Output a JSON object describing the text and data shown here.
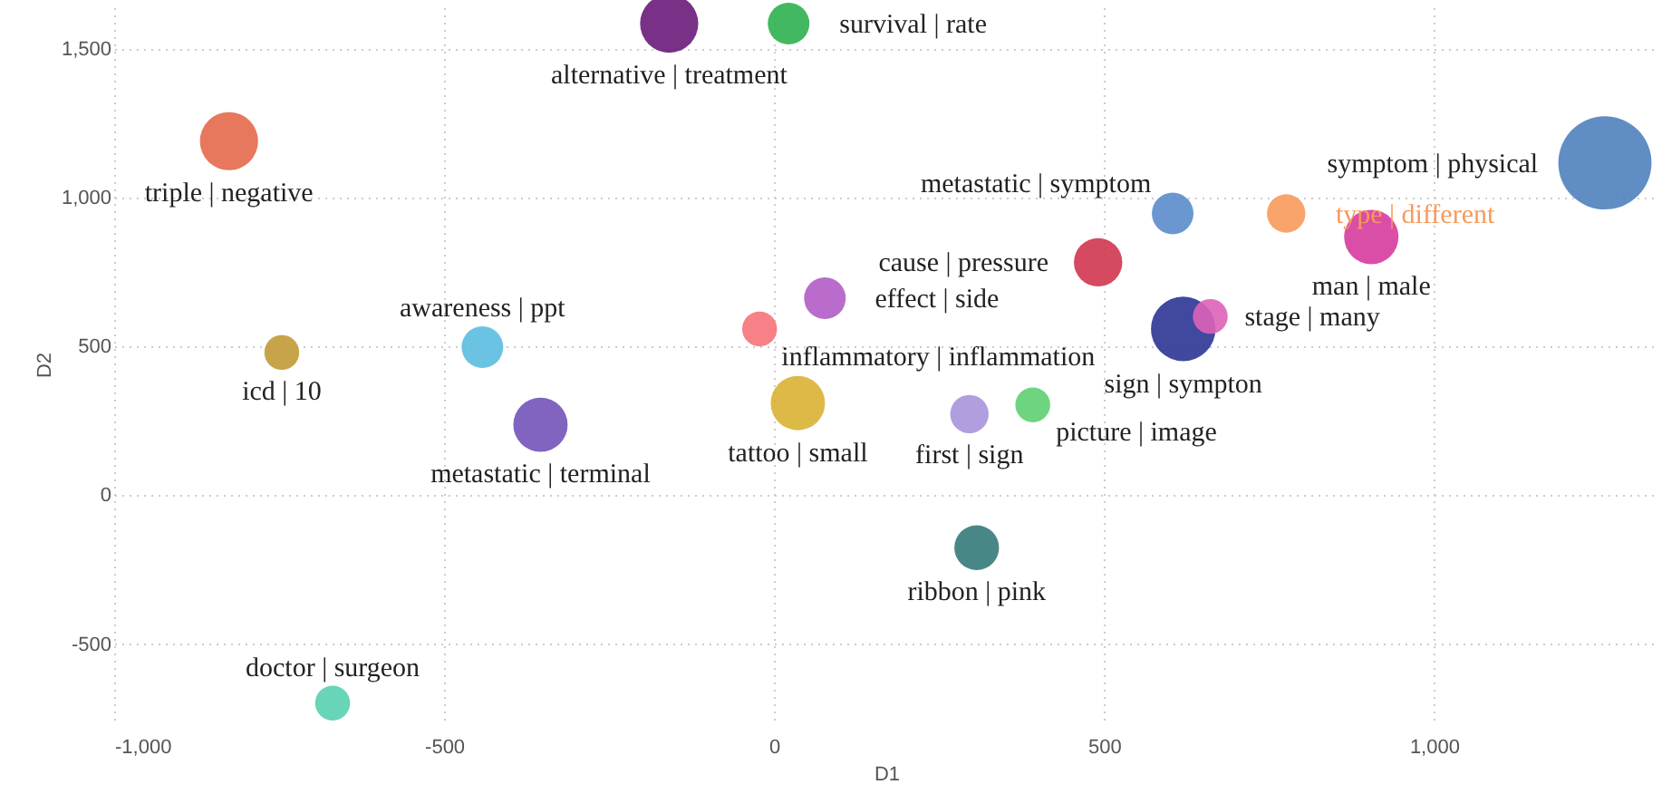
{
  "chart_data": {
    "type": "bubble",
    "xlabel": "D1",
    "ylabel": "D2",
    "xlim": [
      -1000,
      1340
    ],
    "ylim": [
      -760,
      1640
    ],
    "xticks": [
      {
        "value": -1000,
        "label": "-1,000"
      },
      -500,
      0,
      500,
      {
        "value": 1000,
        "label": "1,000"
      }
    ],
    "yticks": [
      -500,
      0,
      500,
      {
        "value": 1000,
        "label": "1,000"
      },
      {
        "value": 1500,
        "label": "1,500"
      }
    ],
    "grid": true,
    "series": [
      {
        "name": "alternative | treatment",
        "color": "#6a1b7a",
        "x": [
          -159
        ],
        "values": [
          1585
        ],
        "sizes": [
          0.39
        ]
      },
      {
        "name": "survival | rate",
        "color": "#2eb04f",
        "x": [
          22
        ],
        "values": [
          1585
        ],
        "sizes": [
          0.2
        ]
      },
      {
        "name": "triple | negative",
        "color": "#e4694b",
        "x": [
          -826
        ],
        "values": [
          1190
        ],
        "sizes": [
          0.39
        ]
      },
      {
        "name": "symptom | physical",
        "color": "#4f81bd",
        "x": [
          1259
        ],
        "values": [
          1117
        ],
        "sizes": [
          1
        ]
      },
      {
        "name": "metastatic | symptom",
        "color": "#5b8ccc",
        "x": [
          604
        ],
        "values": [
          947
        ],
        "sizes": [
          0.2
        ]
      },
      {
        "name": "type | different",
        "color": "#f79a5a",
        "x": [
          776
        ],
        "values": [
          947
        ],
        "sizes": [
          0.17
        ]
      },
      {
        "name": "man | male",
        "color": "#d63b9e",
        "x": [
          905
        ],
        "values": [
          868
        ],
        "sizes": [
          0.34
        ]
      },
      {
        "name": "effect | side",
        "color": "#b35cc8",
        "x": [
          77
        ],
        "values": [
          662
        ],
        "sizes": [
          0.2
        ]
      },
      {
        "name": "cause | pressure",
        "color": "#d0364f",
        "x": [
          491
        ],
        "values": [
          783
        ],
        "sizes": [
          0.27
        ]
      },
      {
        "name": "sign | sympton",
        "color": "#2b3594",
        "x": [
          620
        ],
        "values": [
          559
        ],
        "sizes": [
          0.48
        ]
      },
      {
        "name": "stage | many",
        "color": "#de62b8",
        "x": [
          661
        ],
        "values": [
          601
        ],
        "sizes": [
          0.14
        ]
      },
      {
        "name": "inflammatory | inflammation",
        "color": "#f7727a",
        "x": [
          -22
        ],
        "values": [
          559
        ],
        "sizes": [
          0.14
        ]
      },
      {
        "name": "icd | 10",
        "color": "#c19a35",
        "x": [
          -746
        ],
        "values": [
          480
        ],
        "sizes": [
          0.14
        ]
      },
      {
        "name": "awareness | ppt",
        "color": "#5bbde0",
        "x": [
          -442
        ],
        "values": [
          498
        ],
        "sizes": [
          0.2
        ]
      },
      {
        "name": "tattoo | small",
        "color": "#d9b233",
        "x": [
          36
        ],
        "values": [
          310
        ],
        "sizes": [
          0.34
        ]
      },
      {
        "name": "first | sign",
        "color": "#a993dc",
        "x": [
          296
        ],
        "values": [
          273
        ],
        "sizes": [
          0.17
        ]
      },
      {
        "name": "picture | image",
        "color": "#5fcf72",
        "x": [
          392
        ],
        "values": [
          304
        ],
        "sizes": [
          0.14
        ]
      },
      {
        "name": "metastatic | terminal",
        "color": "#7253b8",
        "x": [
          -354
        ],
        "values": [
          237
        ],
        "sizes": [
          0.34
        ]
      },
      {
        "name": "ribbon | pink",
        "color": "#357a7a",
        "x": [
          307
        ],
        "values": [
          -176
        ],
        "sizes": [
          0.23
        ]
      },
      {
        "name": "doctor | surgeon",
        "color": "#58cfb0",
        "x": [
          -669
        ],
        "values": [
          -698
        ],
        "sizes": [
          0.14
        ]
      }
    ]
  }
}
